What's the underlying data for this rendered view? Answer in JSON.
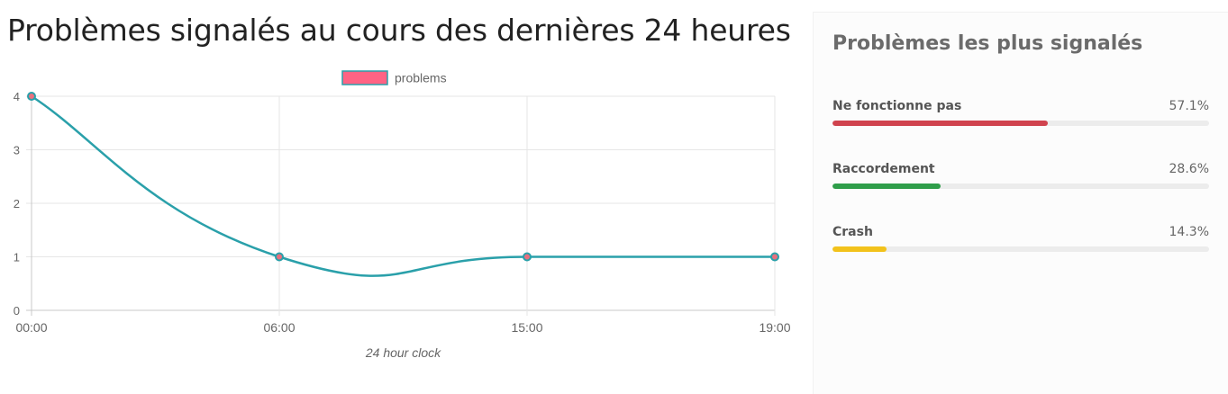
{
  "page": {
    "title": "Problèmes signalés au cours des dernières 24 heures"
  },
  "chart_data": {
    "type": "line",
    "x": [
      "00:00",
      "06:00",
      "15:00",
      "19:00"
    ],
    "series": [
      {
        "name": "problems",
        "values": [
          4,
          1,
          1,
          1
        ],
        "line_color": "#2aa0aa",
        "legend_color": "#ff6384"
      }
    ],
    "xlabel": "24 hour clock",
    "ylabel": "",
    "ylim": [
      0,
      4
    ],
    "yticks": [
      0,
      1,
      2,
      3,
      4
    ],
    "grid": true,
    "legend_position": "top",
    "curve": "smooth"
  },
  "panel": {
    "title": "Problèmes les plus signalés",
    "items": [
      {
        "label": "Ne fonctionne pas",
        "percent_label": "57.1%",
        "value": 57.1,
        "color": "#d0434e"
      },
      {
        "label": "Raccordement",
        "percent_label": "28.6%",
        "value": 28.6,
        "color": "#2f9e4a"
      },
      {
        "label": "Crash",
        "percent_label": "14.3%",
        "value": 14.3,
        "color": "#f2c21b"
      }
    ]
  }
}
